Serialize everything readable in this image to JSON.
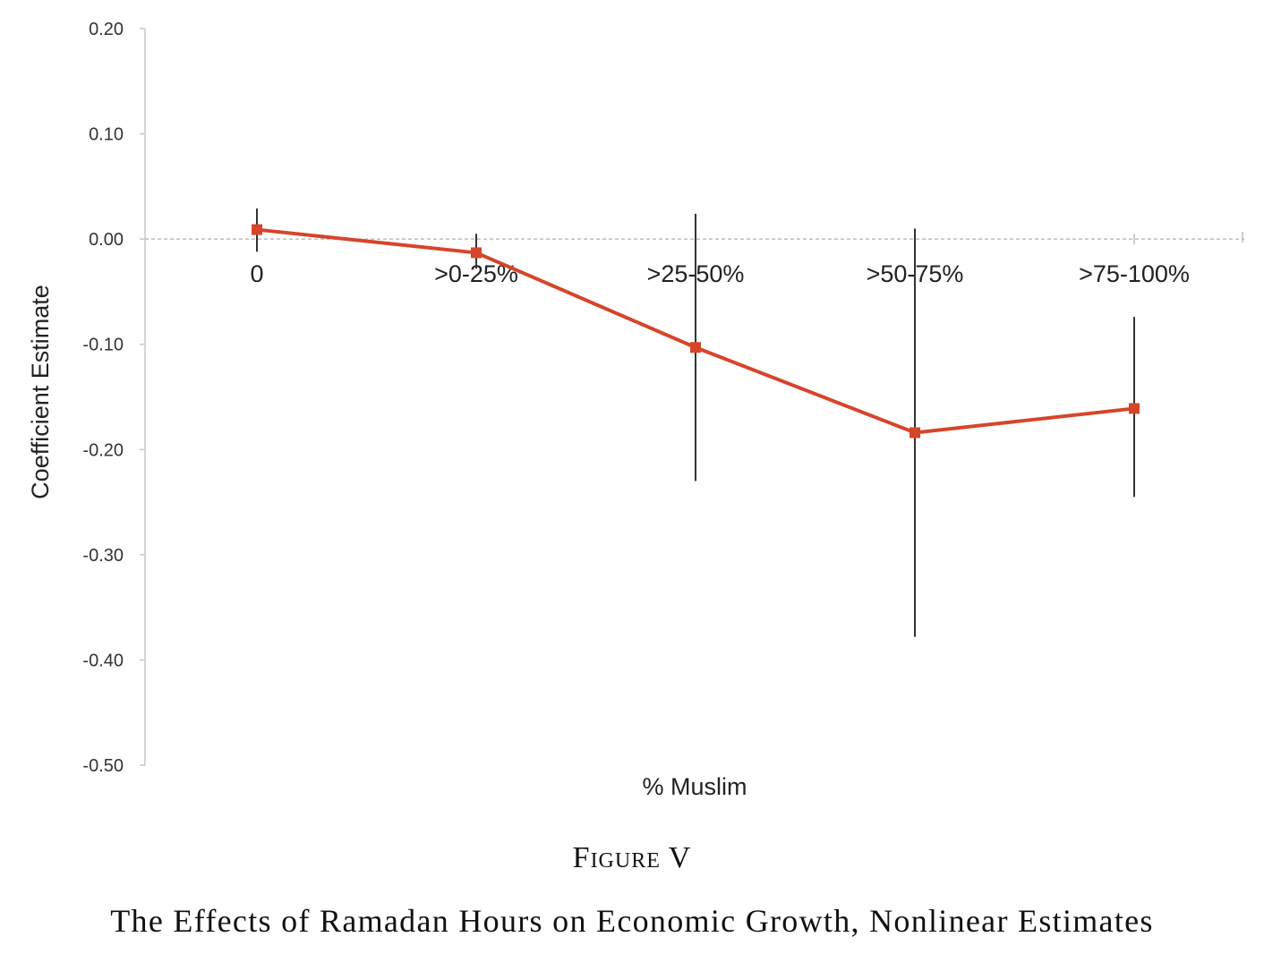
{
  "figure": {
    "label": "Figure V",
    "title": "The Effects of Ramadan Hours on Economic Growth, Nonlinear Estimates"
  },
  "chart_data": {
    "type": "line",
    "title": "",
    "xlabel": "% Muslim",
    "ylabel": "Coefficient Estimate",
    "categories": [
      "0",
      ">0-25%",
      ">25-50%",
      ">50-75%",
      ">75-100%"
    ],
    "y_tick_labels": [
      "0.20",
      "0.10",
      "0.00",
      "-0.10",
      "-0.20",
      "-0.30",
      "-0.40",
      "-0.50"
    ],
    "ylim": [
      -0.5,
      0.2
    ],
    "series": [
      {
        "values": [
          0.009,
          -0.013,
          -0.103,
          -0.184,
          -0.161
        ],
        "error_low": [
          -0.012,
          -0.028,
          -0.23,
          -0.378,
          -0.245
        ],
        "error_high": [
          0.029,
          0.005,
          0.024,
          0.01,
          -0.074
        ],
        "color": "#d6452a",
        "errorbar_color": "#333333"
      }
    ],
    "grid": false,
    "zero_line": "dashed",
    "legend": "none"
  }
}
